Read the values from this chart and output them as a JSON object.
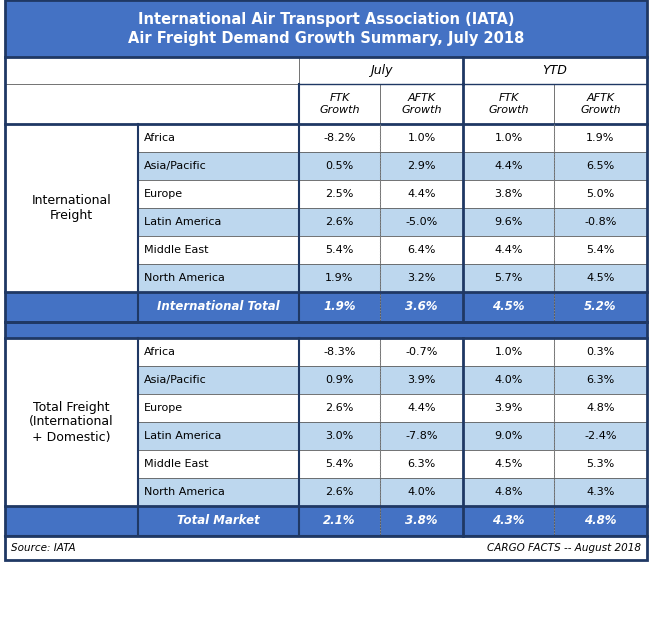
{
  "title_line1": "International Air Transport Association (IATA)",
  "title_line2": "Air Freight Demand Growth Summary, July 2018",
  "blue_header": "#4472C4",
  "light_blue": "#BDD7EE",
  "total_row_bg": "#4472C4",
  "white": "#FFFFFF",
  "col_labels": [
    "FTK\nGrowth",
    "AFTK\nGrowth",
    "FTK\nGrowth",
    "AFTK\nGrowth"
  ],
  "section1_label": "International\nFreight",
  "section1_rows": [
    [
      "Africa",
      "-8.2%",
      "1.0%",
      "1.0%",
      "1.9%"
    ],
    [
      "Asia/Pacific",
      "0.5%",
      "2.9%",
      "4.4%",
      "6.5%"
    ],
    [
      "Europe",
      "2.5%",
      "4.4%",
      "3.8%",
      "5.0%"
    ],
    [
      "Latin America",
      "2.6%",
      "-5.0%",
      "9.6%",
      "-0.8%"
    ],
    [
      "Middle East",
      "5.4%",
      "6.4%",
      "4.4%",
      "5.4%"
    ],
    [
      "North America",
      "1.9%",
      "3.2%",
      "5.7%",
      "4.5%"
    ]
  ],
  "section1_total_label": "International Total",
  "section1_total": [
    "1.9%",
    "3.6%",
    "4.5%",
    "5.2%"
  ],
  "section2_label": "Total Freight\n(International\n+ Domestic)",
  "section2_rows": [
    [
      "Africa",
      "-8.3%",
      "-0.7%",
      "1.0%",
      "0.3%"
    ],
    [
      "Asia/Pacific",
      "0.9%",
      "3.9%",
      "4.0%",
      "6.3%"
    ],
    [
      "Europe",
      "2.6%",
      "4.4%",
      "3.9%",
      "4.8%"
    ],
    [
      "Latin America",
      "3.0%",
      "-7.8%",
      "9.0%",
      "-2.4%"
    ],
    [
      "Middle East",
      "5.4%",
      "6.3%",
      "4.5%",
      "5.3%"
    ],
    [
      "North America",
      "2.6%",
      "4.0%",
      "4.8%",
      "4.3%"
    ]
  ],
  "section2_total_label": "Total Market",
  "section2_total": [
    "2.1%",
    "3.8%",
    "4.3%",
    "4.8%"
  ],
  "footer_left": "Source: IATA",
  "footer_right": "CARGO FACTS -- August 2018",
  "row_colors_s1": [
    "#FFFFFF",
    "#BDD7EE",
    "#FFFFFF",
    "#BDD7EE",
    "#FFFFFF",
    "#BDD7EE"
  ],
  "row_colors_s2": [
    "#FFFFFF",
    "#BDD7EE",
    "#FFFFFF",
    "#BDD7EE",
    "#FFFFFF",
    "#BDD7EE"
  ]
}
